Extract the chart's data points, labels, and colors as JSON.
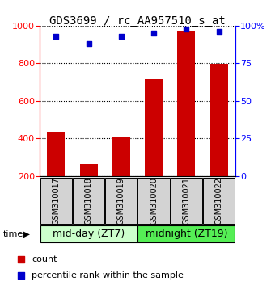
{
  "title": "GDS3699 / rc_AA957510_s_at",
  "samples": [
    "GSM310017",
    "GSM310018",
    "GSM310019",
    "GSM310020",
    "GSM310021",
    "GSM310022"
  ],
  "counts": [
    430,
    265,
    405,
    715,
    975,
    795
  ],
  "percentiles": [
    93,
    88,
    93,
    95,
    98,
    96
  ],
  "ylim_left": [
    200,
    1000
  ],
  "ylim_right": [
    0,
    100
  ],
  "yticks_left": [
    200,
    400,
    600,
    800,
    1000
  ],
  "yticks_right": [
    0,
    25,
    50,
    75,
    100
  ],
  "yticklabels_right": [
    "0",
    "25",
    "50",
    "75",
    "100%"
  ],
  "bar_color": "#cc0000",
  "dot_color": "#0000cc",
  "bar_width": 0.55,
  "group1_label": "mid-day (ZT7)",
  "group2_label": "midnight (ZT19)",
  "group1_color": "#ccffcc",
  "group2_color": "#55ee55",
  "legend_count_label": "count",
  "legend_pct_label": "percentile rank within the sample",
  "time_label": "time",
  "title_fontsize": 10,
  "tick_fontsize": 8,
  "sample_fontsize": 7,
  "group_fontsize": 9,
  "legend_fontsize": 8
}
